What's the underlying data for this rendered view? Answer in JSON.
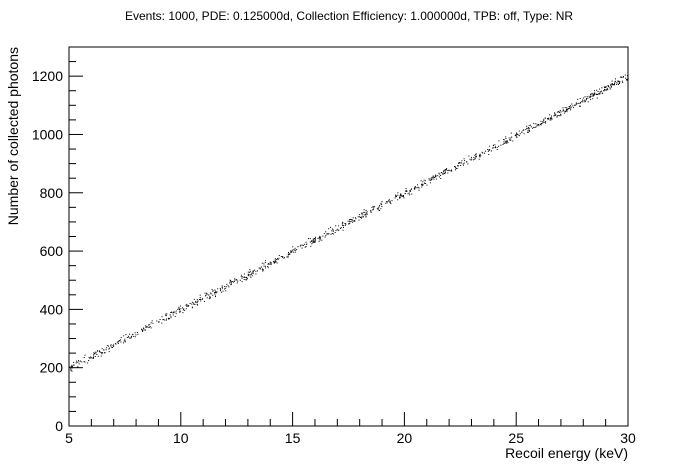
{
  "chart_data": {
    "type": "scatter",
    "title": "Events: 1000, PDE: 0.125000d, Collection Efficiency: 1.000000d, TPB: off, Type: NR",
    "xlabel": "Recoil energy (keV)",
    "ylabel": "Number of collected photons",
    "xlim": [
      5,
      30
    ],
    "ylim": [
      0,
      1300
    ],
    "xticks": [
      5,
      10,
      15,
      20,
      25,
      30
    ],
    "yticks": [
      0,
      200,
      400,
      600,
      800,
      1000,
      1200
    ],
    "grid": false,
    "legend": "none",
    "marker_color": "#000000",
    "series": [
      {
        "trend": {
          "x": [
            5,
            10,
            15,
            20,
            25,
            30
          ],
          "y": [
            200,
            400,
            600,
            800,
            1000,
            1200
          ]
        },
        "spread": 15,
        "n_points": 1000
      }
    ]
  }
}
